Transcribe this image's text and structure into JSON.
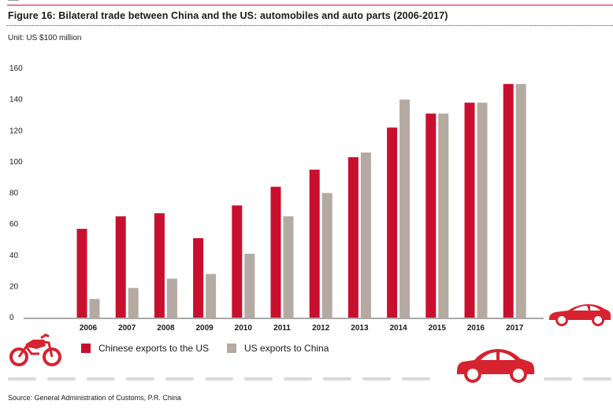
{
  "header": {
    "title": "Figure 16: Bilateral trade between China and the US: automobiles and auto parts (2006-2017)",
    "unit": "Unit: US $100 million"
  },
  "footer": {
    "source": "Source: General Administration of Customs, P.R. China"
  },
  "colors": {
    "accent": "#c8102e",
    "chinese_exports": "#c8102e",
    "us_exports": "#b4aaa1",
    "icons": "#d6232f"
  },
  "icons": [
    "motorcycle-icon",
    "sports-car-icon",
    "sedan-car-icon"
  ],
  "chart_data": {
    "type": "bar",
    "title": "Figure 16: Bilateral trade between China and the US: automobiles and auto parts (2006-2017)",
    "xlabel": "",
    "ylabel": "",
    "ylim": [
      0,
      160
    ],
    "yticks": [
      0,
      20,
      40,
      60,
      80,
      100,
      120,
      140,
      160
    ],
    "grid": false,
    "legend_position": "bottom",
    "categories": [
      "2006",
      "2007",
      "2008",
      "2009",
      "2010",
      "2011",
      "2012",
      "2013",
      "2014",
      "2015",
      "2016",
      "2017"
    ],
    "series": [
      {
        "name": "Chinese exports to the US",
        "values": [
          57,
          65,
          67,
          51,
          72,
          84,
          95,
          103,
          122,
          131,
          138,
          150
        ]
      },
      {
        "name": "US exports to China",
        "values": [
          12,
          19,
          25,
          28,
          41,
          65,
          80,
          106,
          140,
          131,
          138,
          150
        ]
      }
    ]
  }
}
